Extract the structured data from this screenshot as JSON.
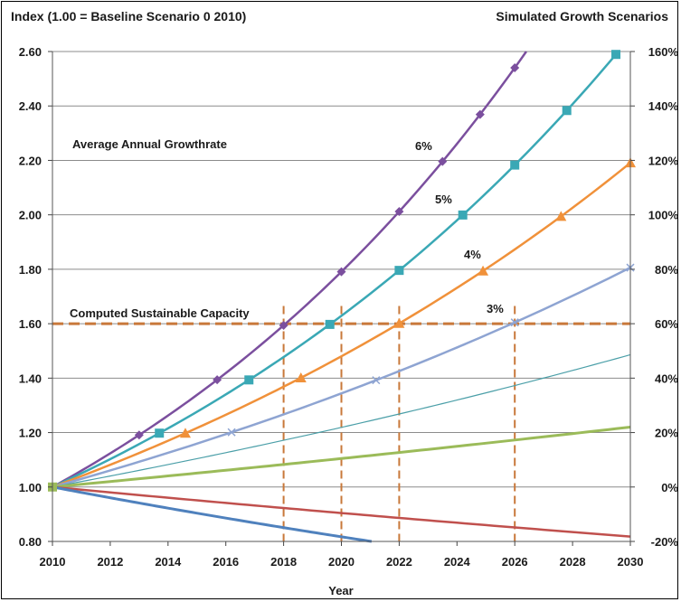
{
  "chart_data": {
    "type": "line",
    "title_left": "Index  (1.00 = Baseline Scenario 0 2010)",
    "title_right": "Simulated Growth Scenarios",
    "xlabel": "Year",
    "xlim": [
      2010,
      2030
    ],
    "ylim": [
      0.8,
      2.6
    ],
    "x_ticks": [
      "2010",
      "2012",
      "2014",
      "2016",
      "2018",
      "2020",
      "2022",
      "2024",
      "2026",
      "2028",
      "2030"
    ],
    "y_ticks_left": [
      "0.80",
      "1.00",
      "1.20",
      "1.40",
      "1.60",
      "1.80",
      "2.00",
      "2.20",
      "2.40",
      "2.60"
    ],
    "y_ticks_right": [
      "-20%",
      "0%",
      "20%",
      "40%",
      "60%",
      "80%",
      "100%",
      "120%",
      "140%",
      "160%"
    ],
    "grid": "horizontal",
    "annotations": {
      "growthrate": "Average Annual Growthrate",
      "capacity": "Computed Sustainable Capacity",
      "p6": "6%",
      "p5": "5%",
      "p4": "4%",
      "p3": "3%"
    },
    "capacity_level": 1.6,
    "capacity_color": "#c8783a",
    "vertical_markers": [
      2018,
      2020,
      2022,
      2026
    ],
    "series": [
      {
        "rate": 0.06,
        "color": "#7b4f9e",
        "width": 2.5,
        "marker": "diamond",
        "marker_years": [
          2013.0,
          2015.7,
          2018,
          2020,
          2022,
          2023.5,
          2024.8,
          2026
        ]
      },
      {
        "rate": 0.05,
        "color": "#3aa8b5",
        "width": 2.5,
        "marker": "square",
        "marker_years": [
          2013.7,
          2016.8,
          2019.6,
          2022,
          2024.2,
          2026,
          2027.8,
          2029.5
        ]
      },
      {
        "rate": 0.04,
        "color": "#f0913a",
        "width": 2.5,
        "marker": "triangle",
        "marker_years": [
          2014.6,
          2018.6,
          2022,
          2024.9,
          2027.6,
          2030
        ]
      },
      {
        "rate": 0.03,
        "color": "#8ea4d2",
        "width": 2.5,
        "marker": "x",
        "marker_years": [
          2016.2,
          2021.2,
          2026,
          2030
        ]
      },
      {
        "rate": 0.02,
        "color": "#4b9fa8",
        "width": 1.2,
        "marker": "none",
        "marker_years": []
      },
      {
        "rate": 0.01,
        "color": "#9bbb59",
        "width": 3,
        "marker": "none",
        "marker_years": []
      },
      {
        "rate": -0.01,
        "color": "#c0504d",
        "width": 2.5,
        "marker": "none",
        "marker_years": []
      },
      {
        "rate": -0.02,
        "color": "#4f81bd",
        "width": 3,
        "marker": "none",
        "marker_years": []
      }
    ],
    "origin_marker_color": "#9bbb59"
  }
}
